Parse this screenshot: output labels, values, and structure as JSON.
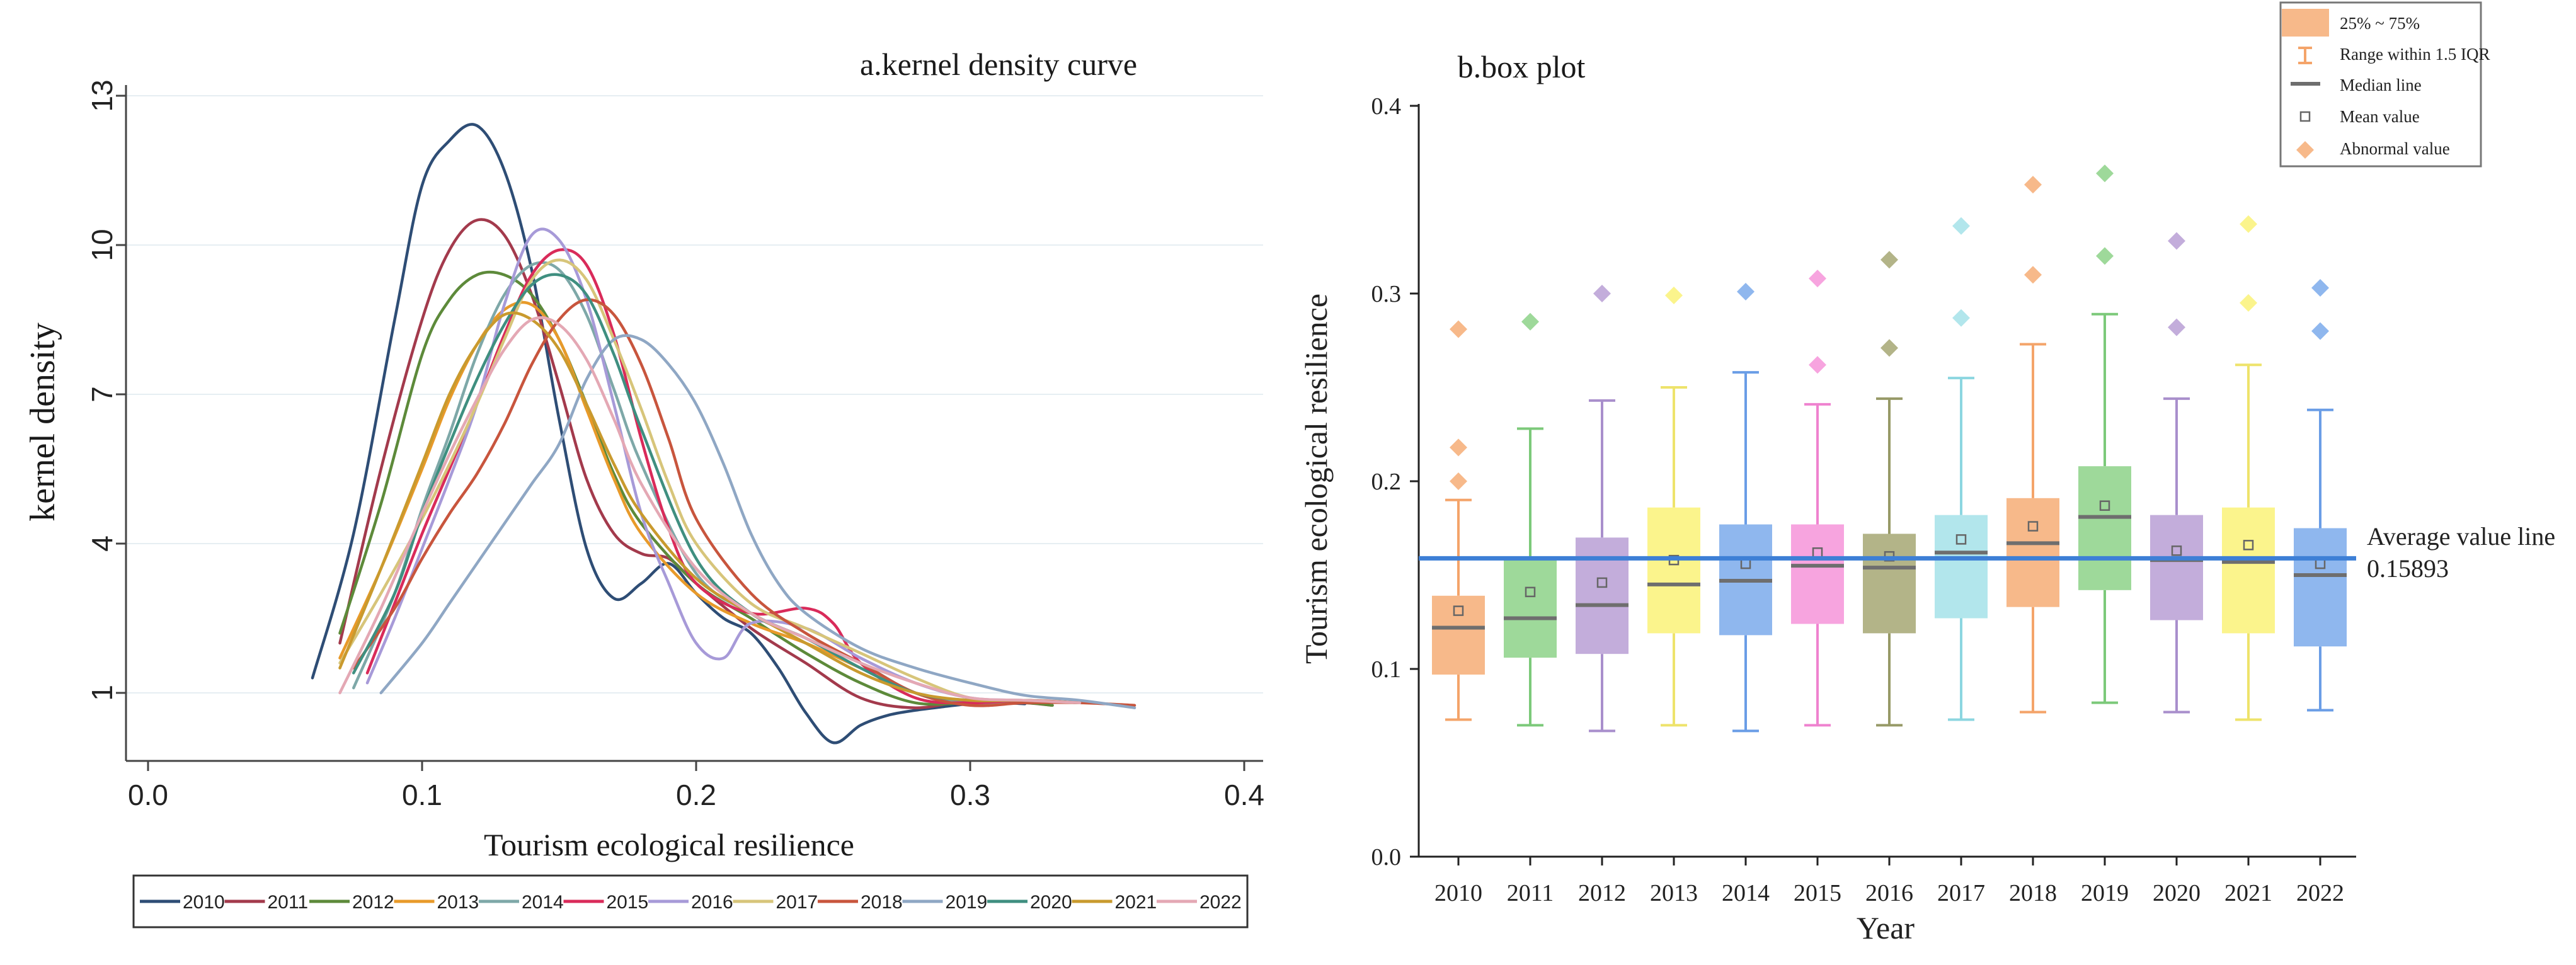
{
  "chart_data": [
    {
      "type": "line",
      "title": "a.kernel density  curve",
      "xlabel": "Tourism ecological resilience",
      "ylabel": "kernel density",
      "xlim": [
        0.0,
        0.4
      ],
      "ylim": [
        -1,
        13
      ],
      "xticks": [
        0.0,
        0.1,
        0.2,
        0.3,
        0.4
      ],
      "xtick_labels": [
        "0.0",
        "0.1",
        "0.2",
        "0.3",
        "0.4"
      ],
      "yticks": [
        1,
        4,
        7,
        10,
        13
      ],
      "ytick_labels": [
        "1",
        "4",
        "7",
        "10",
        "13"
      ],
      "grid": true,
      "legend_position": "bottom",
      "series": [
        {
          "name": "2010",
          "color": "#2e4d75",
          "x": [
            0.06,
            0.075,
            0.09,
            0.1,
            0.11,
            0.12,
            0.13,
            0.14,
            0.15,
            0.16,
            0.17,
            0.18,
            0.19,
            0.2,
            0.21,
            0.22,
            0.23,
            0.24,
            0.25,
            0.26,
            0.27,
            0.28,
            0.29,
            0.3,
            0.31,
            0.32
          ],
          "y": [
            1.3,
            4.2,
            8.5,
            11.2,
            12.1,
            12.4,
            11.5,
            9.5,
            6.5,
            3.9,
            2.9,
            3.2,
            3.6,
            3.0,
            2.5,
            2.2,
            1.5,
            0.6,
            0.0,
            0.35,
            0.55,
            0.65,
            0.72,
            0.78,
            0.8,
            0.78
          ]
        },
        {
          "name": "2011",
          "color": "#a33a4c",
          "x": [
            0.07,
            0.085,
            0.1,
            0.11,
            0.12,
            0.13,
            0.14,
            0.15,
            0.16,
            0.17,
            0.18,
            0.19,
            0.2,
            0.22,
            0.24,
            0.26,
            0.28,
            0.3,
            0.32,
            0.33
          ],
          "y": [
            2.0,
            5.5,
            8.5,
            9.9,
            10.5,
            10.2,
            9.0,
            7.2,
            5.3,
            4.2,
            3.8,
            3.7,
            3.2,
            2.3,
            1.6,
            0.9,
            0.7,
            0.85,
            0.8,
            0.75
          ]
        },
        {
          "name": "2012",
          "color": "#5d8a3a",
          "x": [
            0.07,
            0.085,
            0.1,
            0.11,
            0.12,
            0.13,
            0.14,
            0.15,
            0.16,
            0.17,
            0.18,
            0.2,
            0.22,
            0.24,
            0.26,
            0.28,
            0.3,
            0.32,
            0.33
          ],
          "y": [
            2.2,
            4.8,
            7.8,
            8.9,
            9.4,
            9.4,
            9.0,
            8.1,
            6.8,
            5.4,
            4.4,
            3.2,
            2.5,
            1.8,
            1.2,
            0.8,
            0.8,
            0.8,
            0.75
          ]
        },
        {
          "name": "2013",
          "color": "#e89a2a",
          "x": [
            0.07,
            0.085,
            0.1,
            0.11,
            0.12,
            0.13,
            0.14,
            0.15,
            0.16,
            0.17,
            0.18,
            0.2,
            0.22,
            0.24,
            0.26,
            0.28,
            0.3,
            0.32,
            0.33
          ],
          "y": [
            1.7,
            3.5,
            5.5,
            6.9,
            8.0,
            8.7,
            8.8,
            8.1,
            6.7,
            5.3,
            4.2,
            3.0,
            2.4,
            2.0,
            1.5,
            1.0,
            0.8,
            0.85,
            0.8
          ]
        },
        {
          "name": "2014",
          "color": "#7ea8a8",
          "x": [
            0.075,
            0.09,
            0.1,
            0.11,
            0.12,
            0.13,
            0.14,
            0.15,
            0.16,
            0.17,
            0.18,
            0.2,
            0.22,
            0.24,
            0.26,
            0.28,
            0.3,
            0.32,
            0.33
          ],
          "y": [
            1.1,
            3.0,
            4.7,
            6.2,
            7.8,
            9.0,
            9.6,
            9.5,
            8.6,
            7.1,
            5.6,
            3.4,
            2.6,
            2.1,
            1.6,
            1.0,
            0.8,
            0.85,
            0.8
          ]
        },
        {
          "name": "2015",
          "color": "#d92b5a",
          "x": [
            0.08,
            0.09,
            0.1,
            0.11,
            0.12,
            0.13,
            0.14,
            0.15,
            0.16,
            0.17,
            0.18,
            0.19,
            0.2,
            0.22,
            0.24,
            0.25,
            0.26,
            0.28,
            0.3,
            0.32,
            0.34
          ],
          "y": [
            1.4,
            2.8,
            4.2,
            5.5,
            6.8,
            8.2,
            9.4,
            9.9,
            9.6,
            8.2,
            6.1,
            4.3,
            3.2,
            2.6,
            2.7,
            2.4,
            1.6,
            0.9,
            0.8,
            0.85,
            0.8
          ]
        },
        {
          "name": "2016",
          "color": "#a79ad8",
          "x": [
            0.08,
            0.09,
            0.1,
            0.11,
            0.12,
            0.13,
            0.14,
            0.15,
            0.16,
            0.17,
            0.18,
            0.19,
            0.2,
            0.21,
            0.22,
            0.24,
            0.26,
            0.28,
            0.3,
            0.32,
            0.34
          ],
          "y": [
            1.2,
            2.5,
            3.9,
            5.3,
            6.8,
            8.8,
            10.2,
            10.1,
            8.9,
            6.8,
            4.6,
            3.2,
            2.0,
            1.7,
            2.4,
            2.3,
            1.7,
            1.2,
            0.9,
            0.85,
            0.8
          ]
        },
        {
          "name": "2017",
          "color": "#d7c57a",
          "x": [
            0.07,
            0.085,
            0.1,
            0.11,
            0.12,
            0.13,
            0.14,
            0.15,
            0.16,
            0.17,
            0.18,
            0.19,
            0.2,
            0.22,
            0.24,
            0.26,
            0.28,
            0.3,
            0.32,
            0.34
          ],
          "y": [
            1.6,
            3.0,
            4.5,
            5.6,
            6.8,
            8.1,
            9.3,
            9.7,
            9.3,
            8.1,
            6.7,
            5.2,
            4.0,
            2.8,
            2.3,
            1.8,
            1.3,
            0.9,
            0.85,
            0.8
          ]
        },
        {
          "name": "2018",
          "color": "#c8553d",
          "x": [
            0.075,
            0.09,
            0.1,
            0.11,
            0.12,
            0.13,
            0.14,
            0.15,
            0.16,
            0.17,
            0.18,
            0.19,
            0.2,
            0.22,
            0.24,
            0.26,
            0.28,
            0.3,
            0.32,
            0.34,
            0.36
          ],
          "y": [
            1.5,
            2.7,
            3.7,
            4.6,
            5.4,
            6.4,
            7.6,
            8.5,
            8.9,
            8.6,
            7.6,
            6.1,
            4.5,
            3.0,
            2.2,
            1.6,
            1.0,
            0.75,
            0.8,
            0.8,
            0.75
          ]
        },
        {
          "name": "2019",
          "color": "#8fa7c4",
          "x": [
            0.085,
            0.1,
            0.11,
            0.12,
            0.13,
            0.14,
            0.15,
            0.16,
            0.17,
            0.18,
            0.19,
            0.2,
            0.21,
            0.22,
            0.23,
            0.24,
            0.26,
            0.28,
            0.3,
            0.32,
            0.34,
            0.36
          ],
          "y": [
            1.0,
            2.0,
            2.8,
            3.6,
            4.4,
            5.2,
            6.0,
            7.3,
            8.1,
            8.1,
            7.6,
            6.8,
            5.6,
            4.2,
            3.2,
            2.6,
            1.9,
            1.5,
            1.2,
            0.95,
            0.85,
            0.7
          ]
        },
        {
          "name": "2020",
          "color": "#3f8f80",
          "x": [
            0.075,
            0.09,
            0.1,
            0.11,
            0.12,
            0.13,
            0.14,
            0.15,
            0.16,
            0.17,
            0.18,
            0.2,
            0.22,
            0.24,
            0.26,
            0.28,
            0.3,
            0.32,
            0.34
          ],
          "y": [
            1.4,
            3.0,
            4.6,
            6.0,
            7.3,
            8.4,
            9.2,
            9.4,
            9.0,
            7.8,
            6.3,
            3.7,
            2.6,
            2.1,
            1.5,
            1.0,
            0.85,
            0.85,
            0.8
          ]
        },
        {
          "name": "2021",
          "color": "#c99a2e",
          "x": [
            0.07,
            0.085,
            0.1,
            0.11,
            0.12,
            0.13,
            0.14,
            0.15,
            0.16,
            0.17,
            0.18,
            0.2,
            0.22,
            0.24,
            0.26,
            0.28,
            0.3,
            0.32,
            0.34
          ],
          "y": [
            1.5,
            3.5,
            5.6,
            7.0,
            8.0,
            8.6,
            8.5,
            7.9,
            6.8,
            5.6,
            4.6,
            3.3,
            2.6,
            2.0,
            1.4,
            1.0,
            0.85,
            0.85,
            0.8
          ]
        },
        {
          "name": "2022",
          "color": "#e4a8b4",
          "x": [
            0.07,
            0.085,
            0.1,
            0.11,
            0.12,
            0.13,
            0.14,
            0.15,
            0.16,
            0.17,
            0.18,
            0.2,
            0.22,
            0.24,
            0.26,
            0.28,
            0.3,
            0.32,
            0.34
          ],
          "y": [
            1.0,
            2.7,
            4.6,
            5.8,
            6.9,
            7.9,
            8.5,
            8.4,
            7.7,
            6.5,
            5.2,
            3.5,
            2.6,
            2.1,
            1.6,
            1.2,
            0.9,
            0.85,
            0.8
          ]
        }
      ]
    },
    {
      "type": "box",
      "title": "b.box plot",
      "xlabel": "Year",
      "ylabel": "Tourism ecological resilience",
      "ylim": [
        0.0,
        0.4
      ],
      "yticks": [
        0.0,
        0.1,
        0.2,
        0.3,
        0.4
      ],
      "ytick_labels": [
        "0.0",
        "0.1",
        "0.2",
        "0.3",
        "0.4"
      ],
      "grid": false,
      "legend_position": "top-right",
      "legend": {
        "iqr": "25% ~ 75%",
        "whisker": "Range within 1.5 IQR",
        "median": "Median line",
        "mean": "Mean value",
        "outlier": "Abnormal value"
      },
      "reference_line": {
        "label": "Average value line",
        "value_text": "0.15893",
        "value": 0.15893,
        "color": "#3d7fd6"
      },
      "categories": [
        "2010",
        "2011",
        "2012",
        "2013",
        "2014",
        "2015",
        "2016",
        "2017",
        "2018",
        "2019",
        "2020",
        "2021",
        "2022"
      ],
      "boxes": [
        {
          "year": "2010",
          "min": 0.073,
          "q1": 0.097,
          "median": 0.122,
          "q3": 0.139,
          "max": 0.19,
          "mean": 0.131,
          "outliers": [
            0.2,
            0.218,
            0.281
          ],
          "color": "#f7b98a",
          "dark": "#f4a46a"
        },
        {
          "year": "2011",
          "min": 0.07,
          "q1": 0.106,
          "median": 0.127,
          "q3": 0.158,
          "max": 0.228,
          "mean": 0.141,
          "outliers": [
            0.285
          ],
          "color": "#9ed99a",
          "dark": "#7cc97a"
        },
        {
          "year": "2012",
          "min": 0.067,
          "q1": 0.108,
          "median": 0.134,
          "q3": 0.17,
          "max": 0.243,
          "mean": 0.146,
          "outliers": [
            0.3
          ],
          "color": "#c3addb",
          "dark": "#a98fcc"
        },
        {
          "year": "2013",
          "min": 0.07,
          "q1": 0.119,
          "median": 0.145,
          "q3": 0.186,
          "max": 0.25,
          "mean": 0.158,
          "outliers": [
            0.299
          ],
          "color": "#fbf48c",
          "dark": "#eee36b"
        },
        {
          "year": "2014",
          "min": 0.067,
          "q1": 0.118,
          "median": 0.147,
          "q3": 0.177,
          "max": 0.258,
          "mean": 0.156,
          "outliers": [
            0.301
          ],
          "color": "#8fb7ee",
          "dark": "#6a9de6"
        },
        {
          "year": "2015",
          "min": 0.07,
          "q1": 0.124,
          "median": 0.155,
          "q3": 0.177,
          "max": 0.241,
          "mean": 0.162,
          "outliers": [
            0.262,
            0.308
          ],
          "color": "#f7a4df",
          "dark": "#ef82cf"
        },
        {
          "year": "2016",
          "min": 0.07,
          "q1": 0.119,
          "median": 0.154,
          "q3": 0.172,
          "max": 0.244,
          "mean": 0.16,
          "outliers": [
            0.271,
            0.318
          ],
          "color": "#b3b488",
          "dark": "#979a67"
        },
        {
          "year": "2017",
          "min": 0.073,
          "q1": 0.127,
          "median": 0.162,
          "q3": 0.182,
          "max": 0.255,
          "mean": 0.169,
          "outliers": [
            0.287,
            0.336
          ],
          "color": "#b2e6ec",
          "dark": "#8cd6e0"
        },
        {
          "year": "2018",
          "min": 0.077,
          "q1": 0.133,
          "median": 0.167,
          "q3": 0.191,
          "max": 0.273,
          "mean": 0.176,
          "outliers": [
            0.31,
            0.358
          ],
          "color": "#f7b98a",
          "dark": "#f4a46a"
        },
        {
          "year": "2019",
          "min": 0.082,
          "q1": 0.142,
          "median": 0.181,
          "q3": 0.208,
          "max": 0.289,
          "mean": 0.187,
          "outliers": [
            0.32,
            0.364
          ],
          "color": "#9ed99a",
          "dark": "#7cc97a"
        },
        {
          "year": "2020",
          "min": 0.077,
          "q1": 0.126,
          "median": 0.158,
          "q3": 0.182,
          "max": 0.244,
          "mean": 0.163,
          "outliers": [
            0.282,
            0.328
          ],
          "color": "#c3addb",
          "dark": "#a98fcc"
        },
        {
          "year": "2021",
          "min": 0.073,
          "q1": 0.119,
          "median": 0.157,
          "q3": 0.186,
          "max": 0.262,
          "mean": 0.166,
          "outliers": [
            0.295,
            0.337
          ],
          "color": "#fbf48c",
          "dark": "#eee36b"
        },
        {
          "year": "2022",
          "min": 0.078,
          "q1": 0.112,
          "median": 0.15,
          "q3": 0.175,
          "max": 0.238,
          "mean": 0.156,
          "outliers": [
            0.28,
            0.303
          ],
          "color": "#8fb7ee",
          "dark": "#6a9de6"
        }
      ]
    }
  ]
}
